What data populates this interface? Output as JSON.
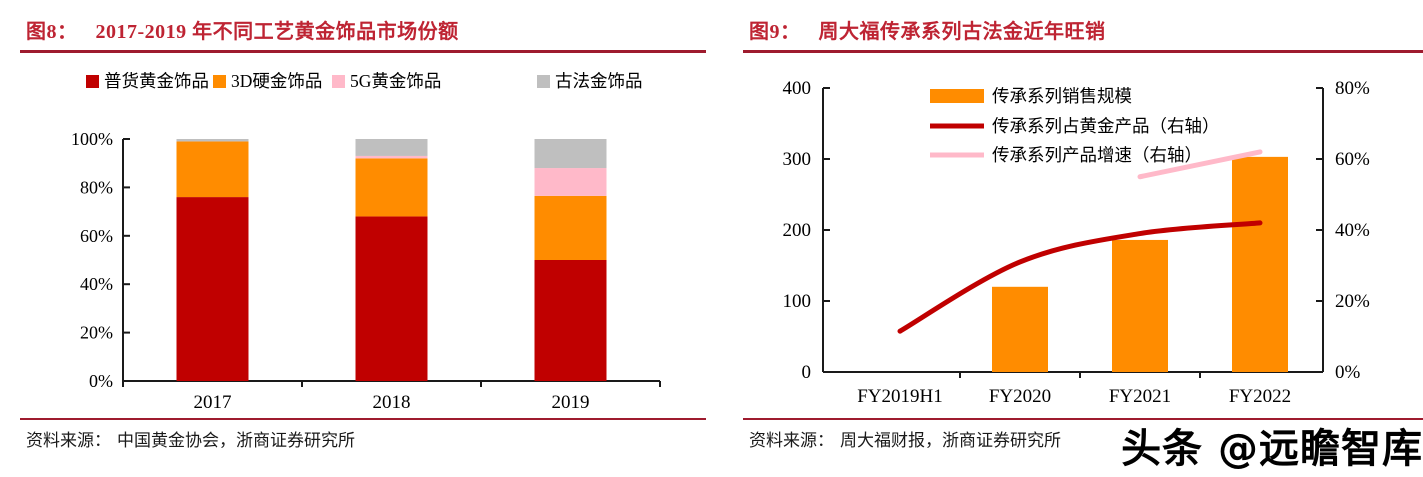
{
  "watermark": {
    "text": "头条 @远瞻智库"
  },
  "fig8": {
    "label": "图8：",
    "title": "2017-2019 年不同工艺黄金饰品市场份额",
    "source_label": "资料来源：",
    "source": "中国黄金协会，浙商证券研究所"
  },
  "fig9": {
    "label": "图9：",
    "title": "周大福传承系列古法金近年旺销",
    "source_label": "资料来源：",
    "source": "周大福财报，浙商证券研究所"
  },
  "colors": {
    "title_red": "#BE2433",
    "rule_red": "#9E1B2E",
    "series_red": "#C00000",
    "series_orange": "#FF8C00",
    "series_pink": "#FFB9C9",
    "series_gray": "#BFBFBF",
    "axis_black": "#1a1a1a"
  },
  "chart_data": [
    {
      "type": "bar",
      "stacked": true,
      "title": "2017-2019 年不同工艺黄金饰品市场份额",
      "categories": [
        "2017",
        "2018",
        "2019"
      ],
      "series": [
        {
          "name": "普货黄金饰品",
          "color": "#C00000",
          "values": [
            76,
            68,
            50
          ]
        },
        {
          "name": "3D硬金饰品",
          "color": "#FF8C00",
          "values": [
            23,
            24,
            26.5
          ]
        },
        {
          "name": "5G黄金饰品",
          "color": "#FFB9C9",
          "values": [
            0,
            1,
            11.5
          ]
        },
        {
          "name": "古法金饰品",
          "color": "#BFBFBF",
          "values": [
            1,
            7,
            12
          ]
        }
      ],
      "xlabel": "",
      "ylabel": "",
      "y_ticks": [
        "0%",
        "20%",
        "40%",
        "60%",
        "80%",
        "100%"
      ],
      "ylim": [
        0,
        100
      ],
      "unit": "percent",
      "grid": false,
      "legend_position": "top"
    },
    {
      "type": "combo",
      "title": "周大福传承系列古法金近年旺销",
      "categories": [
        "FY2019H1",
        "FY2020",
        "FY2021",
        "FY2022"
      ],
      "left_axis": {
        "ticks": [
          "0",
          "100",
          "200",
          "300",
          "400"
        ],
        "lim": [
          0,
          400
        ]
      },
      "right_axis": {
        "ticks": [
          "0%",
          "20%",
          "40%",
          "60%",
          "80%"
        ],
        "lim": [
          0,
          80
        ]
      },
      "grid": false,
      "legend_position": "top-inside",
      "series": [
        {
          "name": "传承系列销售规模",
          "kind": "bar",
          "axis": "left",
          "color": "#FF8C00",
          "smooth": false,
          "values": [
            null,
            120,
            186,
            303
          ]
        },
        {
          "name": "传承系列占黄金产品（右轴）",
          "kind": "line",
          "axis": "right",
          "color": "#C00000",
          "smooth": true,
          "values": [
            11.5,
            31,
            39,
            42
          ]
        },
        {
          "name": "传承系列产品增速（右轴）",
          "kind": "line",
          "axis": "right",
          "color": "#FFB9C9",
          "smooth": false,
          "values": [
            null,
            null,
            55,
            62
          ]
        }
      ]
    }
  ]
}
